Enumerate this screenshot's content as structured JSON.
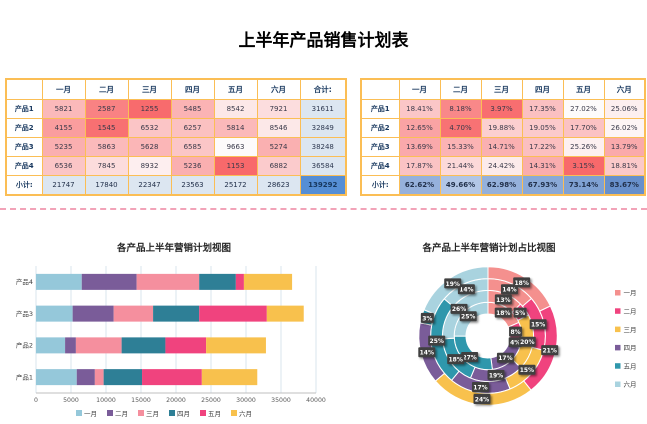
{
  "page": {
    "title": "上半年产品销售计划表",
    "table_border_color": "#FBBE55",
    "divider_color": "#F2A3B8"
  },
  "tables": {
    "sales": {
      "corner": "",
      "columns": [
        "一月",
        "二月",
        "三月",
        "四月",
        "五月",
        "六月",
        "合计:"
      ],
      "rows": [
        {
          "label": "产品1",
          "values": [
            5821,
            2587,
            1255,
            5485,
            8542,
            7921
          ],
          "total": 31611
        },
        {
          "label": "产品2",
          "values": [
            4155,
            1545,
            6532,
            6257,
            5814,
            8546
          ],
          "total": 32849
        },
        {
          "label": "产品3",
          "values": [
            5235,
            5863,
            5628,
            6585,
            9663,
            5274
          ],
          "total": 38248
        },
        {
          "label": "产品4",
          "values": [
            6536,
            7845,
            8932,
            5236,
            1153,
            6882
          ],
          "total": 36584
        }
      ],
      "subtotal": {
        "label": "小计:",
        "values": [
          21747,
          17840,
          22347,
          23563,
          25172,
          28623
        ],
        "total": 139292
      },
      "heatmap": {
        "min": 1153,
        "max": 9663,
        "min_color": "#F8696B",
        "max_color": "#FDFBFB"
      },
      "total_col_bg": "#DCE6F1",
      "subtotal_row_bg": "#DCE6F1",
      "grand_total_bg": "#558ED5"
    },
    "ratio": {
      "corner": "",
      "columns": [
        "一月",
        "二月",
        "三月",
        "四月",
        "五月",
        "六月"
      ],
      "rows": [
        {
          "label": "产品1",
          "values": [
            "18.41%",
            "8.18%",
            "3.97%",
            "17.35%",
            "27.02%",
            "25.06%"
          ]
        },
        {
          "label": "产品2",
          "values": [
            "12.65%",
            "4.70%",
            "19.88%",
            "19.05%",
            "17.70%",
            "26.02%"
          ]
        },
        {
          "label": "产品3",
          "values": [
            "13.69%",
            "15.33%",
            "14.71%",
            "17.22%",
            "25.26%",
            "13.79%"
          ]
        },
        {
          "label": "产品4",
          "values": [
            "17.87%",
            "21.44%",
            "24.42%",
            "14.31%",
            "3.15%",
            "18.81%"
          ]
        }
      ],
      "subtotal": {
        "label": "小计:",
        "values": [
          "62.62%",
          "49.66%",
          "62.98%",
          "67.93%",
          "73.14%",
          "83.67%"
        ]
      },
      "heatmap": {
        "min": 3.15,
        "max": 27.02,
        "min_color": "#F8696B",
        "max_color": "#FDFBFB"
      },
      "subtotal_scale": {
        "min": 49.66,
        "max": 83.67,
        "min_color": "#B2C6E6",
        "max_color": "#6890CB"
      }
    }
  },
  "chart_data": [
    {
      "type": "bar",
      "orientation": "horizontal",
      "stacked": true,
      "title": "各产品上半年营销计划视图",
      "categories": [
        "产品1",
        "产品2",
        "产品3",
        "产品4"
      ],
      "series": [
        {
          "name": "一月",
          "color": "#95C8DA",
          "values": [
            5821,
            4155,
            5235,
            6536
          ]
        },
        {
          "name": "二月",
          "color": "#7A5C99",
          "values": [
            2587,
            1545,
            5863,
            7845
          ]
        },
        {
          "name": "三月",
          "color": "#F58F9E",
          "values": [
            1255,
            6532,
            5628,
            8932
          ]
        },
        {
          "name": "四月",
          "color": "#2E7F96",
          "values": [
            5485,
            6257,
            6585,
            5236
          ]
        },
        {
          "name": "五月",
          "color": "#F0437E",
          "values": [
            8542,
            5814,
            9663,
            1153
          ]
        },
        {
          "name": "六月",
          "color": "#F8C14D",
          "values": [
            7921,
            8546,
            5274,
            6882
          ]
        }
      ],
      "xlim": [
        0,
        40000
      ],
      "x_ticks": [
        "0",
        "5000",
        "10000",
        "15000",
        "20000",
        "25000",
        "30000",
        "35000",
        "40000"
      ],
      "grid": true,
      "legend_position": "bottom"
    },
    {
      "type": "pie",
      "subtype": "doughnut-multi-ring",
      "title": "各产品上半年营销计划占比视图",
      "months": [
        {
          "label": "一月",
          "color": "#F4908E"
        },
        {
          "label": "二月",
          "color": "#F0437E"
        },
        {
          "label": "三月",
          "color": "#F8C14D"
        },
        {
          "label": "四月",
          "color": "#7A5C99"
        },
        {
          "label": "五月",
          "color": "#2F97AC"
        },
        {
          "label": "六月",
          "color": "#A9D3DF"
        }
      ],
      "rings": [
        {
          "name": "产品1",
          "values": [
            5821,
            2587,
            1255,
            5485,
            8542,
            7921
          ],
          "labels": [
            "18%",
            "8%",
            "4%",
            "17%",
            "27%",
            "25%"
          ]
        },
        {
          "name": "产品2",
          "values": [
            4155,
            1545,
            6532,
            6257,
            5814,
            8546
          ],
          "labels": [
            "13%",
            "5%",
            "20%",
            "19%",
            "18%",
            "26%"
          ]
        },
        {
          "name": "产品3",
          "values": [
            5235,
            5863,
            5628,
            6585,
            9663,
            5274
          ],
          "labels": [
            "14%",
            "15%",
            "15%",
            "17%",
            "25%",
            "14%"
          ]
        },
        {
          "name": "产品4",
          "values": [
            6536,
            7845,
            8932,
            5236,
            1153,
            6882
          ],
          "labels": [
            "18%",
            "21%",
            "24%",
            "14%",
            "3%",
            "19%"
          ]
        }
      ],
      "label_style": {
        "bg": "#3F3F3F",
        "text": "#FFFFFF"
      },
      "legend_position": "right"
    }
  ]
}
